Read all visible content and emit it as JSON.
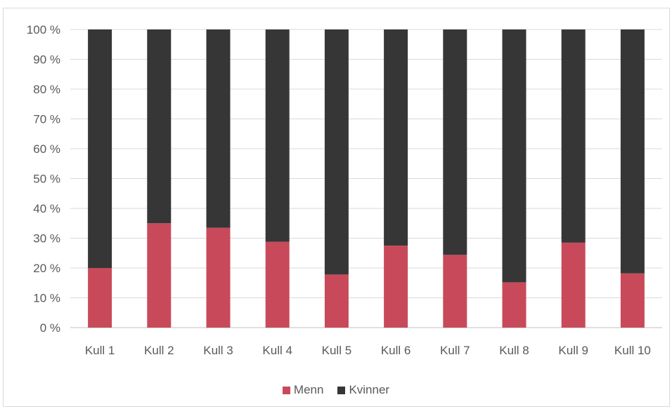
{
  "chart_data": {
    "type": "bar",
    "stacked": true,
    "categories": [
      "Kull 1",
      "Kull 2",
      "Kull 3",
      "Kull 4",
      "Kull 5",
      "Kull 6",
      "Kull 7",
      "Kull 8",
      "Kull 9",
      "Kull 10"
    ],
    "series": [
      {
        "name": "Menn",
        "color": "#c84a5a",
        "values": [
          20.0,
          35.0,
          33.5,
          28.8,
          17.8,
          27.5,
          24.4,
          15.2,
          28.5,
          18.2
        ]
      },
      {
        "name": "Kvinner",
        "color": "#363636",
        "values": [
          80.0,
          65.0,
          66.5,
          71.2,
          82.2,
          72.5,
          75.6,
          84.8,
          71.5,
          81.8
        ]
      }
    ],
    "y_ticks": [
      "0 %",
      "10 %",
      "20 %",
      "30 %",
      "40 %",
      "50 %",
      "60 %",
      "70 %",
      "80 %",
      "90 %",
      "100 %"
    ],
    "ylim": [
      0,
      100
    ],
    "grid": true,
    "legend_position": "bottom",
    "title": "",
    "xlabel": "",
    "ylabel": ""
  }
}
